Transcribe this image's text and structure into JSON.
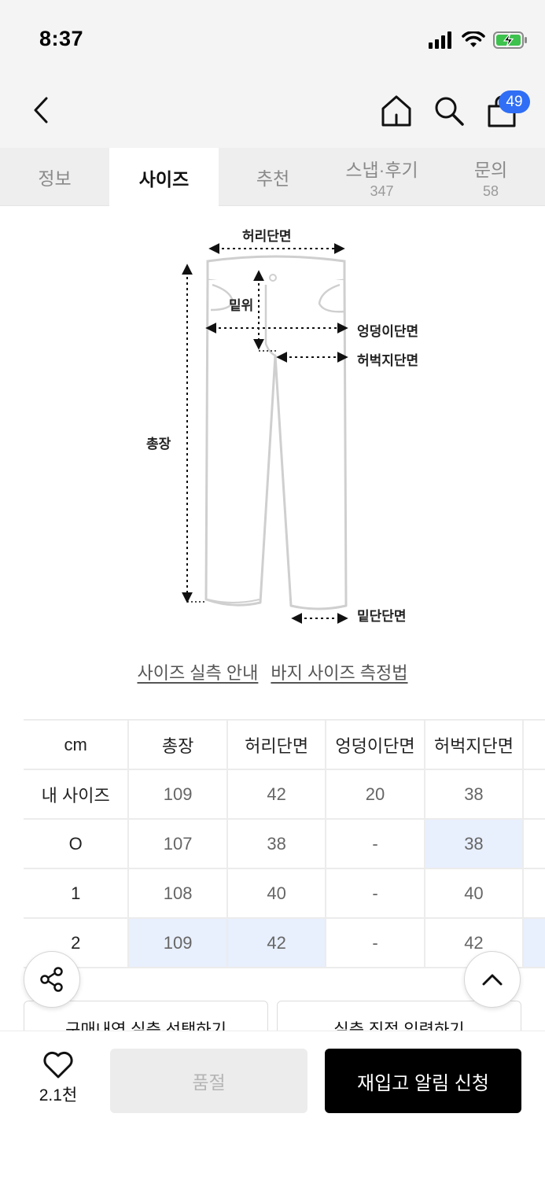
{
  "status_bar": {
    "time": "8:37"
  },
  "header": {
    "cart_badge": "49"
  },
  "tabs": [
    {
      "label": "정보",
      "count": ""
    },
    {
      "label": "사이즈",
      "count": ""
    },
    {
      "label": "추천",
      "count": ""
    },
    {
      "label": "스냅·후기",
      "count": "347"
    },
    {
      "label": "문의",
      "count": "58"
    }
  ],
  "diagram": {
    "waist": "허리단면",
    "rise": "밑위",
    "hip": "엉덩이단면",
    "thigh": "허벅지단면",
    "length": "총장",
    "hem": "밑단단면"
  },
  "links": {
    "measure_guide": "사이즈 실측 안내",
    "pants_method": "바지 사이즈 측정법"
  },
  "size_table": {
    "headers": [
      "cm",
      "총장",
      "허리단면",
      "엉덩이단면",
      "허벅지단면"
    ],
    "rows": [
      {
        "label": "내 사이즈",
        "values": [
          "109",
          "42",
          "20",
          "38"
        ]
      },
      {
        "label": "O",
        "values": [
          "107",
          "38",
          "-",
          "38"
        ]
      },
      {
        "label": "1",
        "values": [
          "108",
          "40",
          "-",
          "40"
        ]
      },
      {
        "label": "2",
        "values": [
          "109",
          "42",
          "-",
          "42"
        ]
      }
    ]
  },
  "actions": {
    "purchase_select": "구매내역 실측 선택하기",
    "direct_input": "실측 직접 입력하기"
  },
  "bottom_bar": {
    "like_count": "2.1천",
    "soldout_label": "품절",
    "restock_label": "재입고 알림 신청"
  }
}
